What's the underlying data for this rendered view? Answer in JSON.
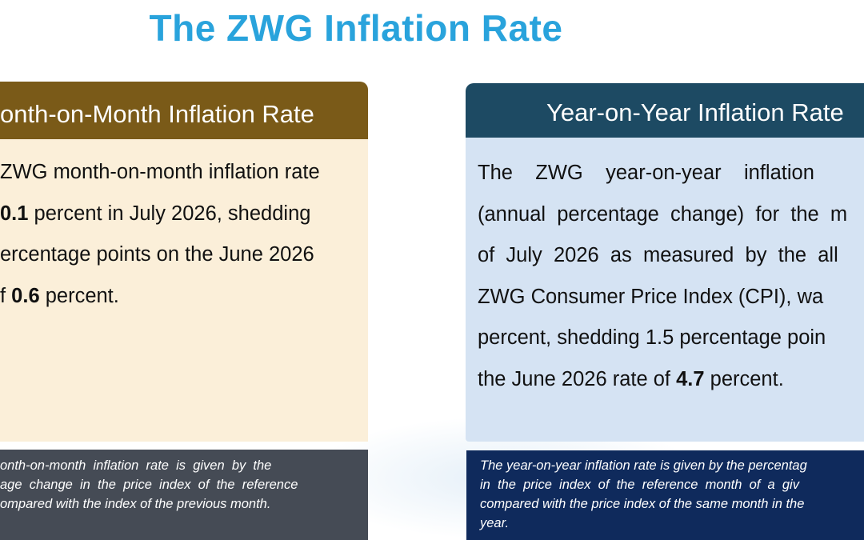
{
  "title": "The ZWG Inflation Rate",
  "colors": {
    "title": "#29a3dc",
    "mom_header": "#7a5a18",
    "mom_body": "#fbefd9",
    "mom_note": "#454b55",
    "yoy_header": "#1d4a63",
    "yoy_body": "#d5e3f3",
    "yoy_note": "#0f2a5c"
  },
  "mom": {
    "header": "onth-on-Month Inflation Rate",
    "lines": [
      [
        "ZWG month-on-month inflation rate"
      ],
      [
        {
          "b": "0.1"
        },
        " percent in July 2026, shedding"
      ],
      [
        "ercentage points on the June 2026"
      ],
      [
        "f ",
        {
          "b": "0.6"
        },
        " percent."
      ]
    ],
    "note": [
      "onth-on-month  inflation  rate  is  given  by  the",
      "age  change  in  the  price  index  of  the  reference",
      "ompared with the index of the previous month."
    ]
  },
  "yoy": {
    "header": "Year-on-Year Inflation Rate",
    "lines": [
      [
        "The    ZWG    year-on-year    inflation"
      ],
      [
        "(annual  percentage  change)  for  the  m"
      ],
      [
        "of  July  2026  as  measured  by  the  all"
      ],
      [
        "ZWG Consumer Price Index (CPI), wa"
      ],
      [
        "percent, shedding 1.5 percentage poin"
      ],
      [
        "the June 2026 rate of ",
        {
          "b": "4.7"
        },
        " percent."
      ]
    ],
    "note": [
      "The year-on-year inflation rate is given by the percentag",
      "in  the  price  index  of  the  reference  month  of  a  giv",
      "compared with the price index of the same month in the",
      "year."
    ]
  }
}
